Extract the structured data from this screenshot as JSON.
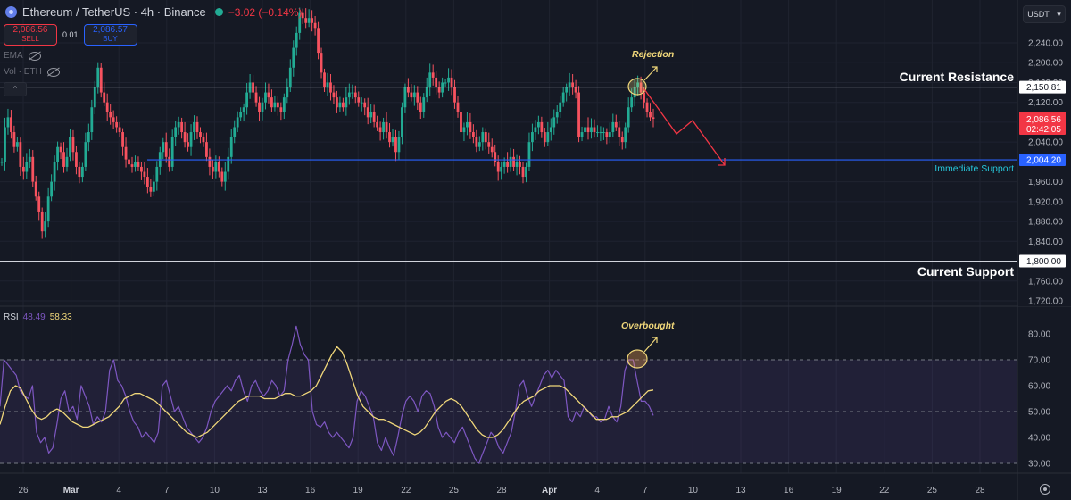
{
  "header": {
    "symbol_title": "Ethereum / TetherUS · 4h · Binance",
    "change": "−3.02 (−0.14%)",
    "sell_price": "2,086.56",
    "sell_label": "SELL",
    "spread": "0.01",
    "buy_price": "2,086.57",
    "buy_label": "BUY",
    "indicators": [
      {
        "label": "EMA",
        "visibility_icon": "eye-hidden-icon"
      },
      {
        "label": "Vol · ETH",
        "visibility_icon": "eye-hidden-icon"
      }
    ],
    "currency_selector": "USDT"
  },
  "colors": {
    "background": "#151924",
    "grid": "#1f2330",
    "up": "#22ab94",
    "down": "#f7525f",
    "resistance_line": "#d1d4dc",
    "support_line": "#d1d4dc",
    "immediate_support_line": "#2962ff",
    "annotation_yellow": "#f0d77a",
    "rsi_line": "#7e57c2",
    "rsi_ma_line": "#f0d77a",
    "arrow_red": "#f23645"
  },
  "annotations": {
    "current_resistance": "Current Resistance",
    "immediate_support": "Immediate Support",
    "current_support": "Current Support",
    "rejection": "Rejection",
    "overbought": "Overbought"
  },
  "price_labels": {
    "resistance": "2,150.81",
    "last_price": "2,086.56",
    "countdown": "02:42:05",
    "immediate_support": "2,004.20",
    "support": "1,800.00"
  },
  "rsi": {
    "label": "RSI",
    "value": "48.49",
    "ma_value": "58.33"
  },
  "chart_data": [
    {
      "type": "candlestick",
      "title": "Ethereum / TetherUS · 4h · Binance",
      "xlabel": "",
      "ylabel": "USDT",
      "ylim": [
        1700,
        2280
      ],
      "y_ticks": [
        "2,240.00",
        "2,200.00",
        "2,160.00",
        "2,120.00",
        "2,080.00",
        "2,040.00",
        "2,000.00",
        "1,960.00",
        "1,920.00",
        "1,880.00",
        "1,840.00",
        "1,800.00",
        "1,760.00",
        "1,720.00"
      ],
      "x_ticks": [
        "26",
        "Mar",
        "4",
        "7",
        "10",
        "13",
        "16",
        "19",
        "22",
        "25",
        "28",
        "Apr",
        "4",
        "7",
        "10",
        "13",
        "16",
        "19",
        "22",
        "25",
        "28"
      ],
      "horizontal_levels": [
        {
          "name": "Current Resistance",
          "value": 2150.81
        },
        {
          "name": "Immediate Support",
          "value": 2004.2
        },
        {
          "name": "Current Support",
          "value": 1800.0
        }
      ],
      "close_path": [
        2000,
        2070,
        2090,
        2060,
        2030,
        2040,
        1990,
        1980,
        2000,
        2010,
        1960,
        1930,
        1900,
        1860,
        1880,
        1930,
        1960,
        2000,
        2030,
        2020,
        1990,
        2010,
        2050,
        2020,
        1990,
        1970,
        1990,
        2040,
        2060,
        2110,
        2150,
        2190,
        2140,
        2120,
        2100,
        2090,
        2080,
        2070,
        2060,
        2030,
        2005,
        1995,
        1990,
        2000,
        1990,
        1980,
        1970,
        1950,
        1940,
        1960,
        1990,
        2020,
        2040,
        2010,
        1990,
        2050,
        2070,
        2080,
        2060,
        2040,
        2030,
        2060,
        2080,
        2060,
        2050,
        2040,
        2010,
        1990,
        1980,
        2000,
        1980,
        1960,
        1980,
        2010,
        2050,
        2070,
        2090,
        2100,
        2110,
        2140,
        2160,
        2140,
        2120,
        2100,
        2120,
        2140,
        2130,
        2110,
        2120,
        2110,
        2100,
        2130,
        2150,
        2190,
        2230,
        2260,
        2300,
        2290,
        2280,
        2290,
        2280,
        2270,
        2220,
        2180,
        2150,
        2160,
        2140,
        2130,
        2110,
        2120,
        2110,
        2130,
        2140,
        2140,
        2130,
        2120,
        2120,
        2110,
        2090,
        2100,
        2080,
        2070,
        2060,
        2080,
        2060,
        2040,
        2050,
        2020,
        2050,
        2110,
        2150,
        2140,
        2130,
        2140,
        2120,
        2100,
        2130,
        2150,
        2180,
        2170,
        2150,
        2140,
        2160,
        2160,
        2170,
        2150,
        2120,
        2100,
        2060,
        2070,
        2080,
        2060,
        2050,
        2030,
        2040,
        2060,
        2040,
        2030,
        2020,
        2000,
        1980,
        1990,
        2000,
        1990,
        2010,
        1990,
        2000,
        1990,
        1970,
        1990,
        2040,
        2060,
        2070,
        2080,
        2060,
        2040,
        2060,
        2070,
        2090,
        2100,
        2120,
        2140,
        2150,
        2160,
        2150,
        2140,
        2050,
        2060,
        2070,
        2060,
        2070,
        2060,
        2060,
        2060,
        2060,
        2050,
        2060,
        2080,
        2070,
        2050,
        2040,
        2070,
        2110,
        2130,
        2150,
        2160,
        2140,
        2120,
        2100,
        2090,
        2087
      ],
      "projection_path": [
        [
          2150,
          2100
        ],
        [
          2060,
          2060
        ],
        [
          2020,
          2000
        ]
      ],
      "annotations": [
        "Rejection",
        "Current Resistance",
        "Immediate Support",
        "Current Support"
      ]
    },
    {
      "type": "line",
      "title": "RSI",
      "ylim": [
        26,
        86
      ],
      "y_ticks": [
        "80.00",
        "70.00",
        "60.00",
        "50.00",
        "40.00",
        "30.00"
      ],
      "bands": {
        "upper": 70,
        "middle": 50,
        "lower": 30
      },
      "series": [
        {
          "name": "RSI",
          "last": 48.49,
          "values": [
            52,
            70,
            68,
            66,
            64,
            58,
            56,
            55,
            60,
            42,
            38,
            40,
            34,
            36,
            45,
            55,
            58,
            50,
            52,
            47,
            60,
            56,
            52,
            45,
            48,
            46,
            50,
            66,
            70,
            62,
            60,
            56,
            50,
            46,
            44,
            40,
            42,
            40,
            38,
            42,
            60,
            62,
            56,
            50,
            52,
            48,
            44,
            42,
            40,
            38,
            40,
            44,
            50,
            54,
            56,
            58,
            60,
            58,
            62,
            64,
            58,
            54,
            60,
            62,
            58,
            56,
            58,
            62,
            60,
            56,
            58,
            70,
            76,
            83,
            76,
            72,
            70,
            50,
            45,
            44,
            46,
            42,
            40,
            42,
            40,
            38,
            36,
            40,
            54,
            58,
            56,
            52,
            48,
            38,
            35,
            40,
            36,
            33,
            40,
            48,
            54,
            56,
            54,
            50,
            56,
            58,
            57,
            52,
            44,
            40,
            42,
            40,
            38,
            42,
            44,
            40,
            36,
            32,
            30,
            34,
            38,
            42,
            40,
            36,
            34,
            38,
            42,
            50,
            60,
            62,
            56,
            52,
            56,
            60,
            64,
            66,
            63,
            66,
            64,
            62,
            48,
            46,
            50,
            48,
            52,
            50,
            48,
            48,
            46,
            47,
            52,
            48,
            46,
            52,
            66,
            70,
            70,
            62,
            54,
            54,
            52,
            48.49
          ]
        },
        {
          "name": "RSI-based MA",
          "last": 58.33,
          "values": [
            45,
            52,
            58,
            60,
            59,
            55,
            51,
            48,
            47,
            48,
            50,
            51,
            50,
            48,
            46,
            45,
            44,
            44,
            45,
            46,
            47,
            48,
            50,
            52,
            55,
            56,
            57,
            57,
            56,
            55,
            54,
            52,
            50,
            48,
            46,
            44,
            42,
            41,
            40,
            41,
            42,
            44,
            46,
            48,
            50,
            52,
            54,
            55,
            56,
            56,
            56,
            55,
            55,
            55,
            56,
            57,
            57,
            56,
            56,
            57,
            58,
            60,
            64,
            68,
            72,
            75,
            73,
            68,
            62,
            56,
            52,
            50,
            48,
            47,
            47,
            46,
            45,
            44,
            43,
            42,
            41,
            42,
            44,
            47,
            50,
            52,
            54,
            55,
            54,
            52,
            49,
            46,
            43,
            41,
            40,
            40,
            41,
            43,
            46,
            49,
            52,
            54,
            55,
            56,
            58,
            59,
            60,
            60,
            60,
            59,
            57,
            55,
            53,
            51,
            49,
            47,
            47,
            47,
            48,
            48,
            49,
            50,
            52,
            54,
            56,
            58,
            58.33
          ]
        }
      ]
    }
  ]
}
